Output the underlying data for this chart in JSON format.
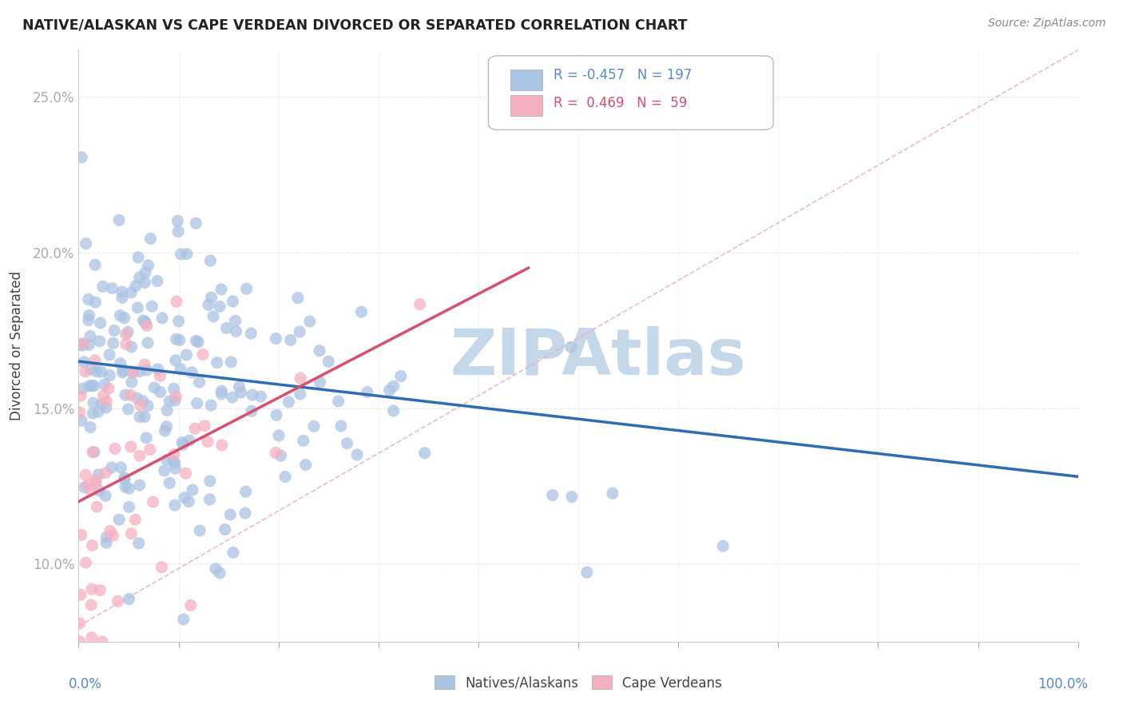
{
  "title": "NATIVE/ALASKAN VS CAPE VERDEAN DIVORCED OR SEPARATED CORRELATION CHART",
  "source": "Source: ZipAtlas.com",
  "ylabel": "Divorced or Separated",
  "legend_r_blue": "-0.457",
  "legend_n_blue": "197",
  "legend_r_pink": "0.469",
  "legend_n_pink": "59",
  "blue_color": "#aac4e4",
  "pink_color": "#f5b0c0",
  "blue_line_color": "#2e6db4",
  "pink_line_color": "#d94f6e",
  "dash_line_color": "#e8b0b8",
  "watermark_color": "#c5d8ea",
  "background_color": "#ffffff",
  "grid_color": "#e8e8e8",
  "tick_color": "#5588cc",
  "title_color": "#222222",
  "ylabel_color": "#444444",
  "source_color": "#888888",
  "xmin": 0,
  "xmax": 100,
  "ymin": 7.5,
  "ymax": 26.5,
  "ytick_positions": [
    10,
    15,
    20,
    25
  ],
  "ytick_labels": [
    "10.0%",
    "15.0%",
    "20.0%",
    "25.0%"
  ],
  "blue_trend_x": [
    0,
    100
  ],
  "blue_trend_y": [
    16.5,
    12.8
  ],
  "pink_trend_x": [
    0,
    45
  ],
  "pink_trend_y": [
    12.0,
    19.5
  ],
  "dash_line_x": [
    0,
    100
  ],
  "dash_line_y": [
    8.0,
    26.5
  ]
}
